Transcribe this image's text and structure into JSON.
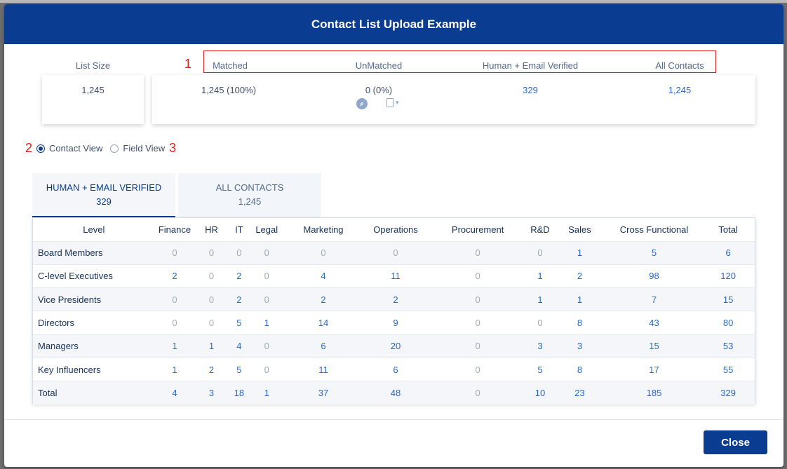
{
  "modal": {
    "title": "Contact List Upload Example"
  },
  "summary": {
    "list_size_label": "List Size",
    "list_size_value": "1,245",
    "headers": {
      "matched": "Matched",
      "unmatched": "UnMatched",
      "human_email_verified": "Human + Email Verified",
      "all_contacts": "All Contacts"
    },
    "values": {
      "matched": "1,245 (100%)",
      "unmatched": "0 (0%)",
      "human_email_verified": "329",
      "all_contacts": "1,245"
    },
    "icons": {
      "search": "search-icon",
      "export": "document-export-icon"
    }
  },
  "markers": {
    "one": "1",
    "two": "2",
    "three": "3"
  },
  "views": {
    "contact_view": "Contact View",
    "field_view": "Field View",
    "selected": "contact_view"
  },
  "tabs": [
    {
      "label": "HUMAN + EMAIL VERIFIED",
      "count": "329",
      "active": true
    },
    {
      "label": "ALL CONTACTS",
      "count": "1,245",
      "active": false
    }
  ],
  "table": {
    "columns": [
      "Level",
      "Finance",
      "HR",
      "IT",
      "Legal",
      "Marketing",
      "Operations",
      "Procurement",
      "R&D",
      "Sales",
      "Cross Functional",
      "Total"
    ],
    "rows": [
      [
        "Board Members",
        "0",
        "0",
        "0",
        "0",
        "0",
        "0",
        "0",
        "0",
        "1",
        "5",
        "6"
      ],
      [
        "C-level Executives",
        "2",
        "0",
        "2",
        "0",
        "4",
        "11",
        "0",
        "1",
        "2",
        "98",
        "120"
      ],
      [
        "Vice Presidents",
        "0",
        "0",
        "2",
        "0",
        "2",
        "2",
        "0",
        "1",
        "1",
        "7",
        "15"
      ],
      [
        "Directors",
        "0",
        "0",
        "5",
        "1",
        "14",
        "9",
        "0",
        "0",
        "8",
        "43",
        "80"
      ],
      [
        "Managers",
        "1",
        "1",
        "4",
        "0",
        "6",
        "20",
        "0",
        "3",
        "3",
        "15",
        "53"
      ],
      [
        "Key Influencers",
        "1",
        "2",
        "5",
        "0",
        "11",
        "6",
        "0",
        "5",
        "8",
        "17",
        "55"
      ],
      [
        "Total",
        "4",
        "3",
        "18",
        "1",
        "37",
        "48",
        "0",
        "10",
        "23",
        "185",
        "329"
      ]
    ]
  },
  "footer": {
    "close_label": "Close"
  },
  "colors": {
    "brand": "#0a3d91",
    "link": "#2a68c2",
    "marker": "#e0201b"
  }
}
